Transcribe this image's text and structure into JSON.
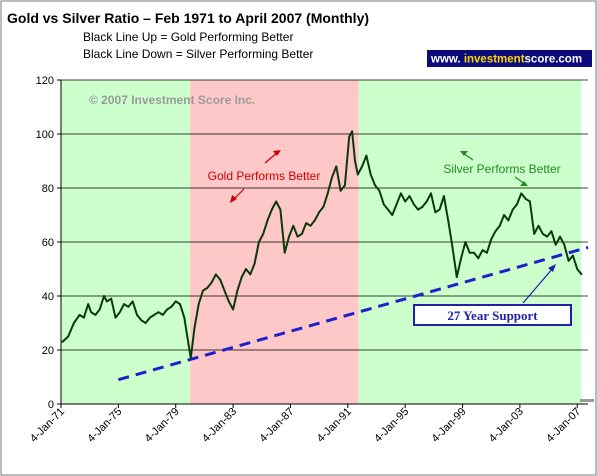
{
  "chart_data": {
    "type": "line",
    "title": "Gold vs Silver Ratio – Feb 1971 to April 2007 (Monthly)",
    "subtitle_lines": [
      "Black Line Up = Gold Performing Better",
      "Black Line Down = Silver Performing Better"
    ],
    "watermark": "www. investmentscore.com",
    "watermark_parts": [
      "www. ",
      "investment",
      "score",
      ".com"
    ],
    "copyright": "© 2007 Investment Score Inc.",
    "ylim": [
      0,
      120
    ],
    "yticks": [
      0,
      20,
      40,
      60,
      80,
      100,
      120
    ],
    "xlim": [
      1971.0,
      2007.75
    ],
    "xtick_labels": [
      "4-Jan-71",
      "4-Jan-75",
      "4-Jan-79",
      "4-Jan-83",
      "4-Jan-87",
      "4-Jan-91",
      "4-Jan-95",
      "4-Jan-99",
      "4-Jan-03",
      "4-Jan-07"
    ],
    "xtick_values": [
      1971,
      1975,
      1979,
      1983,
      1987,
      1991,
      1995,
      1999,
      2003,
      2007
    ],
    "grid": true,
    "legend": "none",
    "regions": [
      {
        "from": 1971.0,
        "to": 1980.0,
        "color": "#ccffcc"
      },
      {
        "from": 1980.0,
        "to": 1991.75,
        "color": "#ffc8c8"
      },
      {
        "from": 1991.75,
        "to": 2007.3,
        "color": "#ccffcc"
      }
    ],
    "annotations": [
      {
        "text": "Gold Performs Better",
        "color": "#cc0000",
        "x": 1985.5,
        "y": 85
      },
      {
        "text": "Silver Performs Better",
        "color": "#228b22",
        "x": 2001.5,
        "y": 87
      },
      {
        "text": "27 Year Support",
        "color": "#1f1fa8",
        "x": 2003.0,
        "y": 33,
        "boxed": true
      }
    ],
    "support_line": {
      "x": [
        1975.0,
        2007.75
      ],
      "y": [
        9,
        58
      ],
      "color": "#1f1fcc"
    },
    "series": [
      {
        "color": "#0a3a0a",
        "x": [
          1971.1,
          1971.5,
          1971.9,
          1972.3,
          1972.6,
          1972.9,
          1973.1,
          1973.4,
          1973.7,
          1974.0,
          1974.2,
          1974.5,
          1974.8,
          1975.1,
          1975.4,
          1975.7,
          1976.0,
          1976.3,
          1976.6,
          1976.9,
          1977.2,
          1977.5,
          1977.8,
          1978.1,
          1978.4,
          1978.7,
          1979.0,
          1979.3,
          1979.6,
          1979.9,
          1980.05,
          1980.3,
          1980.6,
          1980.9,
          1981.2,
          1981.5,
          1981.8,
          1982.1,
          1982.4,
          1982.7,
          1983.0,
          1983.3,
          1983.6,
          1983.9,
          1984.2,
          1984.5,
          1984.8,
          1985.1,
          1985.4,
          1985.7,
          1986.0,
          1986.3,
          1986.6,
          1986.9,
          1987.2,
          1987.5,
          1987.8,
          1988.1,
          1988.4,
          1988.7,
          1989.0,
          1989.3,
          1989.6,
          1989.9,
          1990.2,
          1990.5,
          1990.8,
          1991.1,
          1991.3,
          1991.5,
          1991.7,
          1992.0,
          1992.3,
          1992.6,
          1992.9,
          1993.2,
          1993.5,
          1993.8,
          1994.1,
          1994.4,
          1994.7,
          1995.0,
          1995.3,
          1995.6,
          1995.9,
          1996.2,
          1996.5,
          1996.8,
          1997.1,
          1997.4,
          1997.7,
          1998.0,
          1998.3,
          1998.6,
          1998.9,
          1999.2,
          1999.5,
          1999.8,
          2000.1,
          2000.4,
          2000.7,
          2001.0,
          2001.3,
          2001.6,
          2001.9,
          2002.2,
          2002.5,
          2002.8,
          2003.1,
          2003.4,
          2003.7,
          2004.0,
          2004.3,
          2004.6,
          2004.9,
          2005.2,
          2005.5,
          2005.8,
          2006.1,
          2006.4,
          2006.7,
          2007.0,
          2007.3
        ],
        "y": [
          23,
          25,
          30,
          33,
          32,
          37,
          34,
          33,
          35,
          40,
          38,
          39,
          32,
          34,
          37,
          36,
          38,
          33,
          31,
          30,
          32,
          33,
          34,
          33,
          35,
          36,
          38,
          37,
          32,
          22,
          17,
          28,
          37,
          42,
          43,
          45,
          48,
          46,
          42,
          38,
          35,
          42,
          47,
          50,
          48,
          52,
          60,
          63,
          68,
          72,
          75,
          72,
          56,
          62,
          66,
          62,
          63,
          67,
          66,
          68,
          71,
          73,
          78,
          84,
          88,
          79,
          81,
          99,
          101,
          90,
          85,
          88,
          92,
          85,
          81,
          79,
          74,
          72,
          70,
          74,
          78,
          75,
          77,
          74,
          72,
          73,
          75,
          78,
          71,
          72,
          77,
          68,
          58,
          47,
          54,
          60,
          56,
          56,
          54,
          57,
          56,
          61,
          64,
          66,
          70,
          68,
          72,
          74,
          78,
          76,
          75,
          63,
          66,
          63,
          62,
          64,
          59,
          62,
          59,
          53,
          55,
          50,
          48
        ]
      }
    ]
  }
}
